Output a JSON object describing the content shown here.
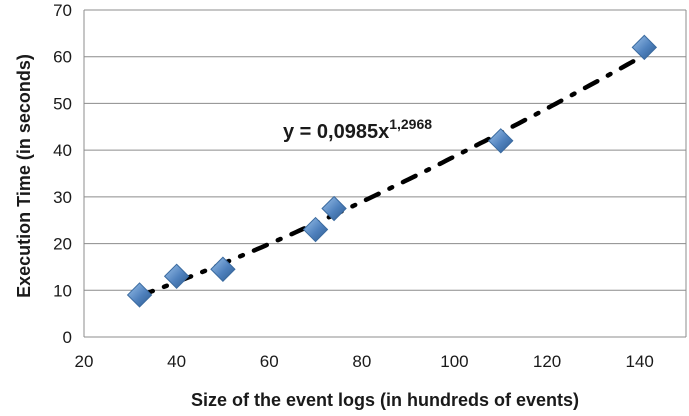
{
  "chart_data": {
    "type": "scatter",
    "xlabel": "Size of the event logs (in hundreds of events)",
    "ylabel": "Execution Time (in seconds)",
    "xlim": [
      20,
      150
    ],
    "ylim": [
      0,
      70
    ],
    "xticks": [
      20,
      40,
      60,
      80,
      100,
      120,
      140
    ],
    "yticks": [
      0,
      10,
      20,
      30,
      40,
      50,
      60,
      70
    ],
    "grid": "horizontal",
    "marker": "diamond",
    "marker_color": "#4F81BD",
    "points": [
      {
        "x": 32,
        "y": 9
      },
      {
        "x": 40,
        "y": 13
      },
      {
        "x": 50,
        "y": 14.5
      },
      {
        "x": 70,
        "y": 23
      },
      {
        "x": 74,
        "y": 27.5
      },
      {
        "x": 110,
        "y": 42
      },
      {
        "x": 141,
        "y": 62
      }
    ],
    "trendline": {
      "type": "power",
      "coefficient": 0.0985,
      "exponent": 1.2968,
      "x_range": [
        32,
        141
      ],
      "style": "dash-dot",
      "color": "#000000"
    },
    "equation": {
      "base": "y = 0,0985x",
      "exponent": "1,2968"
    }
  }
}
